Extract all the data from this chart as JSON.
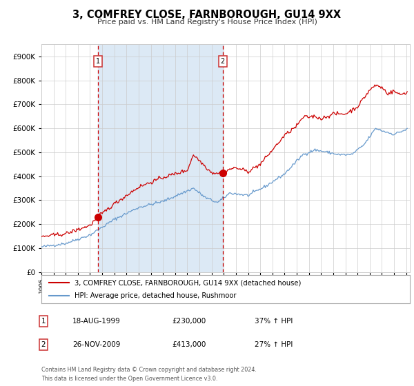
{
  "title": "3, COMFREY CLOSE, FARNBOROUGH, GU14 9XX",
  "subtitle": "Price paid vs. HM Land Registry's House Price Index (HPI)",
  "legend_line1": "3, COMFREY CLOSE, FARNBOROUGH, GU14 9XX (detached house)",
  "legend_line2": "HPI: Average price, detached house, Rushmoor",
  "sale1_label": "1",
  "sale1_date": "18-AUG-1999",
  "sale1_price": "£230,000",
  "sale1_hpi": "37% ↑ HPI",
  "sale2_label": "2",
  "sale2_date": "26-NOV-2009",
  "sale2_price": "£413,000",
  "sale2_hpi": "27% ↑ HPI",
  "footer1": "Contains HM Land Registry data © Crown copyright and database right 2024.",
  "footer2": "This data is licensed under the Open Government Licence v3.0.",
  "red_color": "#cc0000",
  "blue_color": "#6699cc",
  "bg_color": "#ffffff",
  "shaded_color": "#dce9f5",
  "grid_color": "#cccccc",
  "sale1_x": 1999.63,
  "sale2_x": 2009.9,
  "ylim_max": 950000,
  "yticks": [
    0,
    100000,
    200000,
    300000,
    400000,
    500000,
    600000,
    700000,
    800000,
    900000
  ]
}
